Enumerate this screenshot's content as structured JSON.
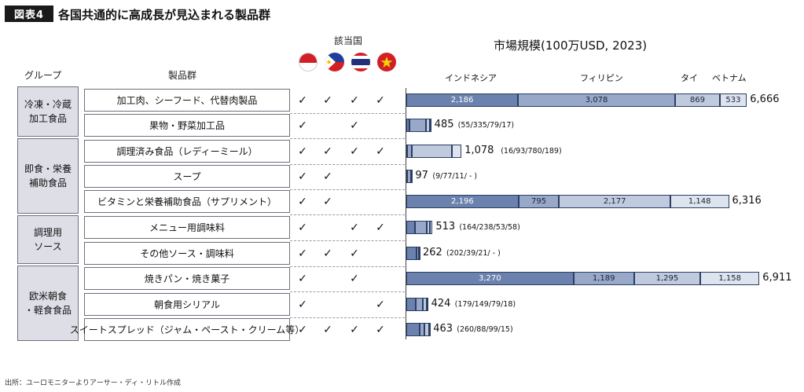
{
  "title": {
    "badge": "図表4",
    "text": "各国共通的に高成長が見込まれる製品群"
  },
  "headers": {
    "group": "グループ",
    "products": "製品群",
    "countries": "該当国"
  },
  "chart": {
    "title": "市場規模(100万USD, 2023)"
  },
  "countries": [
    "インドネシア",
    "フィリピン",
    "タイ",
    "ベトナム"
  ],
  "flags": [
    "indonesia-flag",
    "philippines-flag",
    "thailand-flag",
    "vietnam-flag"
  ],
  "colors": [
    "#6a82ad",
    "#97a8c9",
    "#bfcadf",
    "#dde3ef"
  ],
  "groups": [
    {
      "label": "冷凍・冷蔵\n加工食品"
    },
    {
      "label": "即食・栄養\n補助食品"
    },
    {
      "label": "調理用\nソース"
    },
    {
      "label": "欧米朝食\n・軽食食品"
    }
  ],
  "source": "出所：ユーロモニターよりアーサー・ディ・リトル作成",
  "chart_data": {
    "type": "bar",
    "stacked": true,
    "orientation": "horizontal",
    "title": "市場規模(100万USD, 2023)",
    "categories": [
      "加工肉、シーフード、代替肉製品",
      "果物・野菜加工品",
      "調理済み食品（レディーミール）",
      "スープ",
      "ビタミンと栄養補助食品（サプリメント）",
      "メニュー用調味料",
      "その他ソース・調味料",
      "焼きパン・焼き菓子",
      "朝食用シリアル",
      "スイートスプレッド（ジャム・ペースト・クリーム等）"
    ],
    "series": [
      {
        "name": "インドネシア",
        "values": [
          2186,
          55,
          16,
          9,
          2196,
          164,
          202,
          3270,
          179,
          260
        ]
      },
      {
        "name": "フィリピン",
        "values": [
          3078,
          335,
          93,
          77,
          795,
          238,
          39,
          1189,
          149,
          88
        ]
      },
      {
        "name": "タイ",
        "values": [
          869,
          79,
          780,
          11,
          2177,
          53,
          21,
          1295,
          79,
          99
        ]
      },
      {
        "name": "ベトナム",
        "values": [
          533,
          17,
          189,
          null,
          1148,
          58,
          null,
          1158,
          18,
          15
        ]
      }
    ],
    "totals": [
      6666,
      485,
      1078,
      97,
      6316,
      513,
      262,
      6911,
      424,
      463
    ],
    "total_labels": [
      "6,666",
      "485",
      "1,078",
      "97",
      "6,316",
      "513",
      "262",
      "6,911",
      "424",
      "463"
    ],
    "breakdown_labels": [
      "",
      "(55/335/79/17)",
      "(16/93/780/189)",
      "(9/77/11/ - )",
      "",
      "(164/238/53/58)",
      "(202/39/21/ - )",
      "",
      "(179/149/79/18)",
      "(260/88/99/15)"
    ],
    "segment_labels": [
      [
        "2,186",
        "3,078",
        "869",
        "533"
      ],
      [],
      [],
      [],
      [
        "2,196",
        "795",
        "2,177",
        "1,148"
      ],
      [],
      [],
      [
        "3,270",
        "1,189",
        "1,295",
        "1,158"
      ],
      [],
      []
    ],
    "applicable_countries": [
      [
        true,
        true,
        true,
        true
      ],
      [
        true,
        false,
        true,
        false
      ],
      [
        true,
        true,
        true,
        true
      ],
      [
        true,
        true,
        false,
        false
      ],
      [
        true,
        true,
        false,
        false
      ],
      [
        true,
        false,
        true,
        true
      ],
      [
        true,
        true,
        true,
        false
      ],
      [
        true,
        false,
        true,
        false
      ],
      [
        true,
        false,
        false,
        true
      ],
      [
        true,
        true,
        true,
        true
      ]
    ],
    "check_mark": "✓"
  }
}
